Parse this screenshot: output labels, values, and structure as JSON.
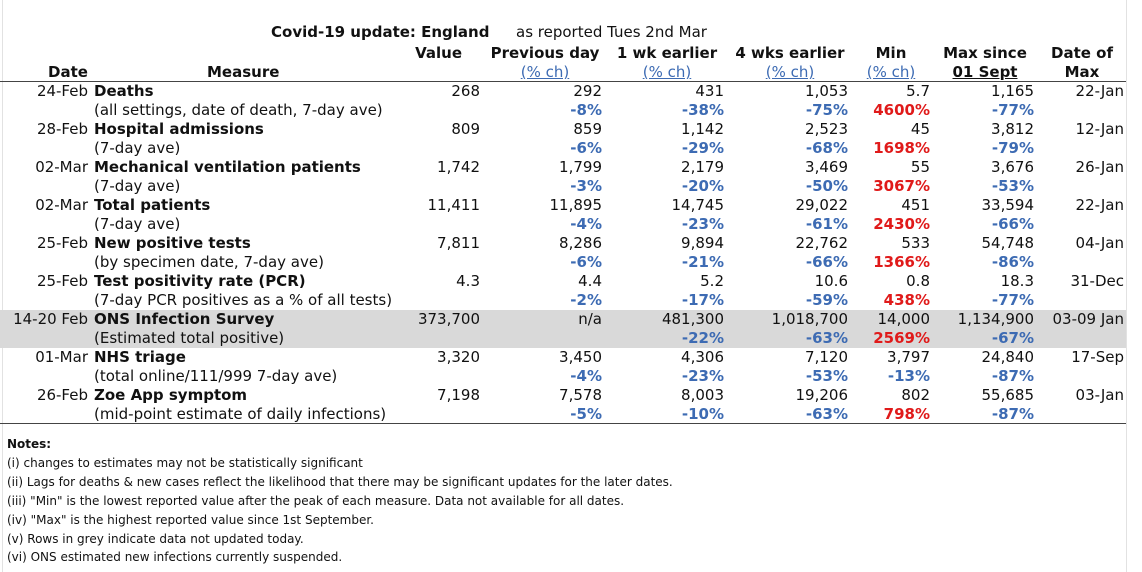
{
  "title": {
    "main": "Covid-19 update: England",
    "reported": "as reported Tues 2nd Mar"
  },
  "headers": {
    "value": "Value",
    "prev_day": "Previous day",
    "prev_day_sub": "(% ch)",
    "wk1": "1 wk earlier",
    "wk1_sub": "(% ch)",
    "wk4": "4 wks earlier",
    "wk4_sub": "(% ch)",
    "min": "Min",
    "min_sub": "(% ch)",
    "max_since": "Max since",
    "max_since_sub": "01 Sept",
    "date_of": "Date of",
    "date_of_sub": "Max",
    "date": "Date",
    "measure": "Measure"
  },
  "rows": [
    {
      "date": "24-Feb",
      "measure": "Deaths",
      "sub": "(all settings, date of death, 7-day ave)",
      "value": "268",
      "prev": "292",
      "prev_ch": "-8%",
      "wk1": "431",
      "wk1_ch": "-38%",
      "wk4": "1,053",
      "wk4_ch": "-75%",
      "min": "5.7",
      "min_ch": "4600%",
      "max": "1,165",
      "max_ch": "-77%",
      "max_date": "22-Jan",
      "grey": false
    },
    {
      "date": "28-Feb",
      "measure": "Hospital admissions",
      "sub": "(7-day ave)",
      "value": "809",
      "prev": "859",
      "prev_ch": "-6%",
      "wk1": "1,142",
      "wk1_ch": "-29%",
      "wk4": "2,523",
      "wk4_ch": "-68%",
      "min": "45",
      "min_ch": "1698%",
      "max": "3,812",
      "max_ch": "-79%",
      "max_date": "12-Jan",
      "grey": false
    },
    {
      "date": "02-Mar",
      "measure": "Mechanical ventilation patients",
      "sub": "(7-day ave)",
      "value": "1,742",
      "prev": "1,799",
      "prev_ch": "-3%",
      "wk1": "2,179",
      "wk1_ch": "-20%",
      "wk4": "3,469",
      "wk4_ch": "-50%",
      "min": "55",
      "min_ch": "3067%",
      "max": "3,676",
      "max_ch": "-53%",
      "max_date": "26-Jan",
      "grey": false
    },
    {
      "date": "02-Mar",
      "measure": "Total patients",
      "sub": "(7-day ave)",
      "value": "11,411",
      "prev": "11,895",
      "prev_ch": "-4%",
      "wk1": "14,745",
      "wk1_ch": "-23%",
      "wk4": "29,022",
      "wk4_ch": "-61%",
      "min": "451",
      "min_ch": "2430%",
      "max": "33,594",
      "max_ch": "-66%",
      "max_date": "22-Jan",
      "grey": false
    },
    {
      "date": "25-Feb",
      "measure": "New positive tests",
      "sub": "(by specimen date, 7-day ave)",
      "value": "7,811",
      "prev": "8,286",
      "prev_ch": "-6%",
      "wk1": "9,894",
      "wk1_ch": "-21%",
      "wk4": "22,762",
      "wk4_ch": "-66%",
      "min": "533",
      "min_ch": "1366%",
      "max": "54,748",
      "max_ch": "-86%",
      "max_date": "04-Jan",
      "grey": false
    },
    {
      "date": "25-Feb",
      "measure": "Test positivity rate (PCR)",
      "sub": "(7-day PCR positives as a % of all tests)",
      "value": "4.3",
      "prev": "4.4",
      "prev_ch": "-2%",
      "wk1": "5.2",
      "wk1_ch": "-17%",
      "wk4": "10.6",
      "wk4_ch": "-59%",
      "min": "0.8",
      "min_ch": "438%",
      "max": "18.3",
      "max_ch": "-77%",
      "max_date": "31-Dec",
      "grey": false
    },
    {
      "date": "14-20 Feb",
      "measure": "ONS Infection Survey",
      "sub": "(Estimated total positive)",
      "value": "373,700",
      "prev": "n/a",
      "prev_ch": "",
      "wk1": "481,300",
      "wk1_ch": "-22%",
      "wk4": "1,018,700",
      "wk4_ch": "-63%",
      "min": "14,000",
      "min_ch": "2569%",
      "max": "1,134,900",
      "max_ch": "-67%",
      "max_date": "03-09 Jan",
      "grey": true
    },
    {
      "date": "01-Mar",
      "measure": "NHS triage",
      "sub": "(total online/111/999 7-day ave)",
      "value": "3,320",
      "prev": "3,450",
      "prev_ch": "-4%",
      "wk1": "4,306",
      "wk1_ch": "-23%",
      "wk4": "7,120",
      "wk4_ch": "-53%",
      "min": "3,797",
      "min_ch": "-13%",
      "max": "24,840",
      "max_ch": "-87%",
      "max_date": "17-Sep",
      "grey": false
    },
    {
      "date": "26-Feb",
      "measure": "Zoe App symptom",
      "sub": "(mid-point estimate of daily infections)",
      "value": "7,198",
      "prev": "7,578",
      "prev_ch": "-5%",
      "wk1": "8,003",
      "wk1_ch": "-10%",
      "wk4": "19,206",
      "wk4_ch": "-63%",
      "min": "802",
      "min_ch": "798%",
      "max": "55,685",
      "max_ch": "-87%",
      "max_date": "03-Jan",
      "grey": false
    }
  ],
  "notes": {
    "heading": "Notes:",
    "items": [
      "(i) changes to estimates may not be statistically significant",
      "(ii) Lags for deaths & new cases reflect the likelihood that there may be significant updates for the later dates.",
      "(iii) \"Min\" is the lowest reported value after the peak of each measure. Data not available for all dates.",
      "(iv) \"Max\" is the highest reported value since 1st September.",
      "(v) Rows in grey indicate data not updated today.",
      "(vi) ONS estimated new infections currently suspended."
    ]
  },
  "colors": {
    "positive_change": "#e01a1a",
    "negative_change": "#3d6bb3",
    "grey_row": "#d9d9d9"
  }
}
